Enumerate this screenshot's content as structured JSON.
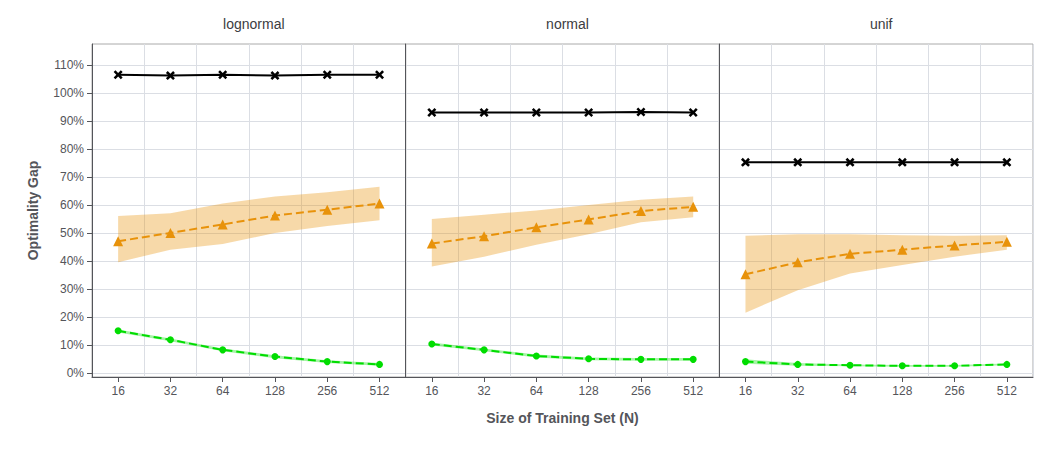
{
  "chart_data": [
    {
      "type": "line",
      "title": "lognormal",
      "categories": [
        "16",
        "32",
        "64",
        "128",
        "256",
        "512"
      ],
      "y_label": "Optimality Gap",
      "ylim": [
        -0.015,
        1.175
      ],
      "yticks": [
        {
          "value": 0.0,
          "label": "0%"
        },
        {
          "value": 0.1,
          "label": "10%"
        },
        {
          "value": 0.2,
          "label": "20%"
        },
        {
          "value": 0.3,
          "label": "30%"
        },
        {
          "value": 0.4,
          "label": "40%"
        },
        {
          "value": 0.5,
          "label": "50%"
        },
        {
          "value": 0.6,
          "label": "60%"
        },
        {
          "value": 0.7,
          "label": "70%"
        },
        {
          "value": 0.8,
          "label": "80%"
        },
        {
          "value": 0.9,
          "label": "90%"
        },
        {
          "value": 1.0,
          "label": "100%"
        },
        {
          "value": 1.1,
          "label": "110%"
        }
      ],
      "grid": true,
      "series": [
        {
          "color": "#000000",
          "marker": "x",
          "line_style": "solid",
          "values": [
            1.065,
            1.062,
            1.065,
            1.062,
            1.065,
            1.065
          ]
        },
        {
          "color": "#E8920A",
          "marker": "triangle",
          "line_style": "dashed",
          "values": [
            0.47,
            0.5,
            0.53,
            0.562,
            0.583,
            0.605
          ],
          "lower": [
            0.395,
            0.44,
            0.46,
            0.5,
            0.525,
            0.545
          ],
          "upper": [
            0.56,
            0.57,
            0.605,
            0.63,
            0.645,
            0.665
          ]
        },
        {
          "color": "#00DD00",
          "marker": "circle",
          "line_style": "dashed",
          "values": [
            0.15,
            0.118,
            0.082,
            0.058,
            0.04,
            0.03
          ],
          "lower": [
            0.144,
            0.113,
            0.077,
            0.052,
            0.035,
            0.025
          ],
          "upper": [
            0.155,
            0.123,
            0.087,
            0.063,
            0.045,
            0.035
          ]
        }
      ]
    },
    {
      "type": "line",
      "title": "normal",
      "categories": [
        "16",
        "32",
        "64",
        "128",
        "256",
        "512"
      ],
      "x_label": "Size of Training Set (N)",
      "ylim": [
        -0.015,
        1.175
      ],
      "yticks": [
        {
          "value": 0.0,
          "label": "0%"
        },
        {
          "value": 0.1,
          "label": "10%"
        },
        {
          "value": 0.2,
          "label": "20%"
        },
        {
          "value": 0.3,
          "label": "30%"
        },
        {
          "value": 0.4,
          "label": "40%"
        },
        {
          "value": 0.5,
          "label": "50%"
        },
        {
          "value": 0.6,
          "label": "60%"
        },
        {
          "value": 0.7,
          "label": "70%"
        },
        {
          "value": 0.8,
          "label": "80%"
        },
        {
          "value": 0.9,
          "label": "90%"
        },
        {
          "value": 1.0,
          "label": "100%"
        },
        {
          "value": 1.1,
          "label": "110%"
        }
      ],
      "grid": true,
      "tick_labels": "x",
      "series": [
        {
          "color": "#000000",
          "marker": "x",
          "line_style": "solid",
          "values": [
            0.93,
            0.93,
            0.93,
            0.93,
            0.932,
            0.93
          ]
        },
        {
          "color": "#E8920A",
          "marker": "triangle",
          "line_style": "dashed",
          "values": [
            0.462,
            0.488,
            0.52,
            0.548,
            0.578,
            0.593
          ],
          "lower": [
            0.38,
            0.415,
            0.458,
            0.495,
            0.538,
            0.556
          ],
          "upper": [
            0.55,
            0.565,
            0.58,
            0.6,
            0.618,
            0.63
          ]
        },
        {
          "color": "#00DD00",
          "marker": "circle",
          "line_style": "dashed",
          "values": [
            0.103,
            0.082,
            0.06,
            0.05,
            0.048,
            0.048
          ],
          "lower": [
            0.098,
            0.077,
            0.055,
            0.045,
            0.043,
            0.043
          ],
          "upper": [
            0.108,
            0.087,
            0.065,
            0.055,
            0.053,
            0.053
          ]
        }
      ]
    },
    {
      "type": "line",
      "title": "unif",
      "categories": [
        "16",
        "32",
        "64",
        "128",
        "256",
        "512"
      ],
      "ylim": [
        -0.015,
        1.175
      ],
      "yticks": [
        {
          "value": 0.0,
          "label": "0%"
        },
        {
          "value": 0.1,
          "label": "10%"
        },
        {
          "value": 0.2,
          "label": "20%"
        },
        {
          "value": 0.3,
          "label": "30%"
        },
        {
          "value": 0.4,
          "label": "40%"
        },
        {
          "value": 0.5,
          "label": "50%"
        },
        {
          "value": 0.6,
          "label": "60%"
        },
        {
          "value": 0.7,
          "label": "70%"
        },
        {
          "value": 0.8,
          "label": "80%"
        },
        {
          "value": 0.9,
          "label": "90%"
        },
        {
          "value": 1.0,
          "label": "100%"
        },
        {
          "value": 1.1,
          "label": "110%"
        }
      ],
      "grid": true,
      "tick_labels": "x",
      "series": [
        {
          "color": "#000000",
          "marker": "x",
          "line_style": "solid",
          "values": [
            0.752,
            0.752,
            0.752,
            0.752,
            0.752,
            0.752
          ]
        },
        {
          "color": "#E8920A",
          "marker": "triangle",
          "line_style": "dashed",
          "values": [
            0.352,
            0.395,
            0.425,
            0.44,
            0.455,
            0.468
          ],
          "lower": [
            0.215,
            0.295,
            0.355,
            0.385,
            0.415,
            0.44
          ],
          "upper": [
            0.49,
            0.495,
            0.495,
            0.492,
            0.49,
            0.492
          ]
        },
        {
          "color": "#00DD00",
          "marker": "circle",
          "line_style": "dashed",
          "values": [
            0.04,
            0.03,
            0.027,
            0.025,
            0.025,
            0.03
          ],
          "lower": [
            0.032,
            0.025,
            0.023,
            0.022,
            0.022,
            0.027
          ],
          "upper": [
            0.048,
            0.035,
            0.03,
            0.028,
            0.028,
            0.033
          ]
        }
      ]
    }
  ]
}
